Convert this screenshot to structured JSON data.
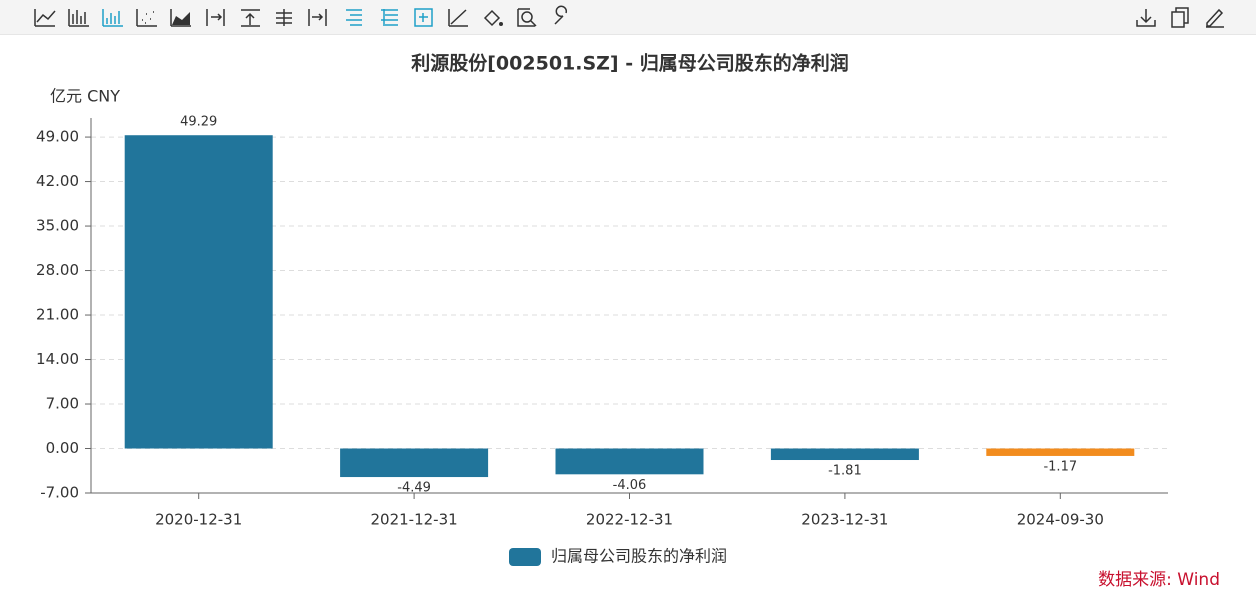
{
  "chart_data": {
    "type": "bar",
    "title": "利源股份[002501.SZ] - 归属母公司股东的净利润",
    "y_unit": "亿元  CNY",
    "categories": [
      "2020-12-31",
      "2021-12-31",
      "2022-12-31",
      "2023-12-31",
      "2024-09-30"
    ],
    "series": [
      {
        "name": "归属母公司股东的净利润",
        "color": "#21759b",
        "values": [
          49.29,
          -4.49,
          -4.06,
          -1.81,
          -1.17
        ],
        "point_colors": [
          "#21759b",
          "#21759b",
          "#21759b",
          "#21759b",
          "#f28c1e"
        ]
      }
    ],
    "ylim": [
      -7,
      52
    ],
    "yticks": [
      {
        "value": -7,
        "label": "-7.00"
      },
      {
        "value": 0,
        "label": "0.00"
      },
      {
        "value": 7,
        "label": "7.00"
      },
      {
        "value": 14,
        "label": "14.00"
      },
      {
        "value": 21,
        "label": "21.00"
      },
      {
        "value": 28,
        "label": "28.00"
      },
      {
        "value": 35,
        "label": "35.00"
      },
      {
        "value": 42,
        "label": "42.00"
      },
      {
        "value": 49,
        "label": "49.00"
      }
    ],
    "grid": true,
    "source": "数据来源: Wind"
  }
}
